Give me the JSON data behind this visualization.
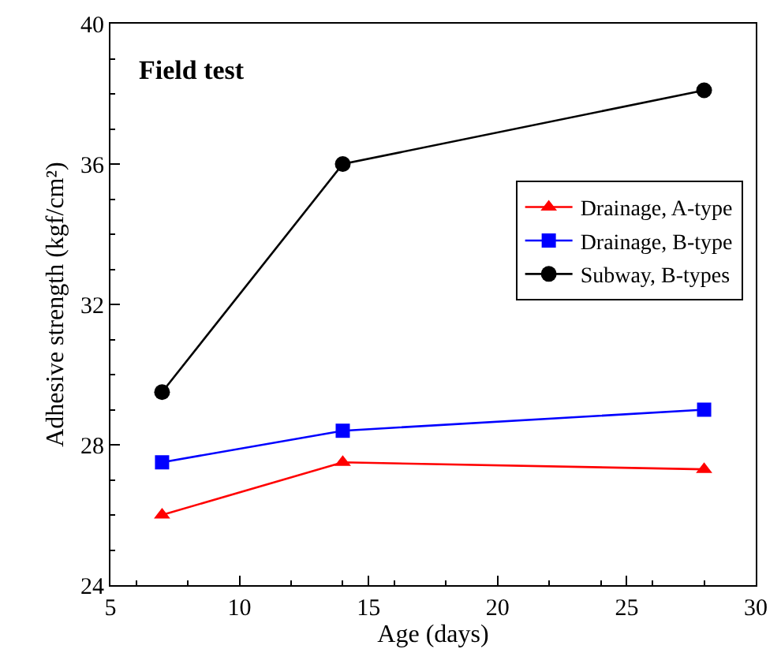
{
  "chart_data": {
    "type": "line",
    "xlabel": "Age (days)",
    "ylabel": "Adhesive strength (kgf/cm²)",
    "annotations": [
      "Field test"
    ],
    "x": [
      7,
      14,
      28
    ],
    "series": [
      {
        "name": "Drainage, A-type",
        "color": "#ff0000",
        "marker": "triangle",
        "values": [
          26.0,
          27.5,
          27.3
        ]
      },
      {
        "name": "Drainage, B-type",
        "color": "#0000ff",
        "marker": "square",
        "values": [
          27.5,
          28.4,
          29.0
        ]
      },
      {
        "name": "Subway, B-types",
        "color": "#000000",
        "marker": "circle",
        "values": [
          29.5,
          36.0,
          38.1
        ]
      }
    ],
    "xlim": [
      5,
      30
    ],
    "xticks": [
      5,
      10,
      15,
      20,
      25,
      30
    ],
    "ylim": [
      24,
      40
    ],
    "yticks": [
      24,
      28,
      32,
      36,
      40
    ],
    "legend": "right",
    "line_style": "solid"
  }
}
